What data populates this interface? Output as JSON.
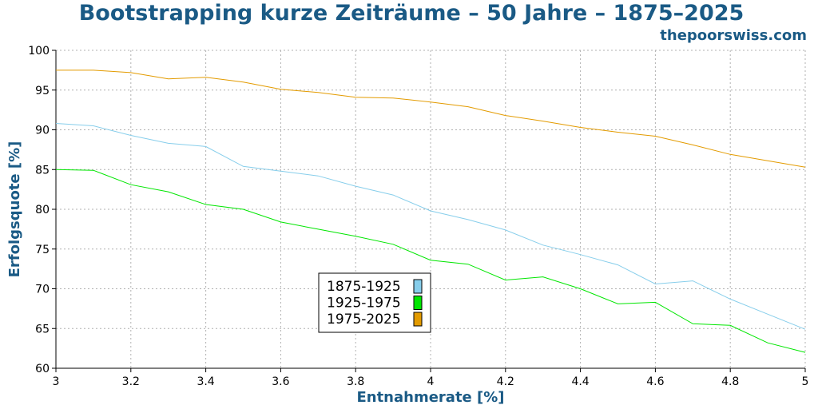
{
  "header": {
    "title": "Bootstrapping kurze Zeiträume – 50 Jahre – 1875–2025",
    "site": "thepoorswiss.com"
  },
  "chart_data": {
    "type": "line",
    "title": "Bootstrapping kurze Zeiträume – 50 Jahre – 1875–2025",
    "xlabel": "Entnahmerate [%]",
    "ylabel": "Erfolgsquote [%]",
    "xlim": [
      3,
      5
    ],
    "ylim": [
      60,
      100
    ],
    "xticks": [
      "3",
      "3.2",
      "3.4",
      "3.6",
      "3.8",
      "4",
      "4.2",
      "4.4",
      "4.6",
      "4.8",
      "5"
    ],
    "yticks": [
      "60",
      "65",
      "70",
      "75",
      "80",
      "85",
      "90",
      "95",
      "100"
    ],
    "grid": true,
    "legend_position": "center",
    "x": [
      3.0,
      3.1,
      3.2,
      3.3,
      3.4,
      3.5,
      3.6,
      3.7,
      3.8,
      3.9,
      4.0,
      4.1,
      4.2,
      4.3,
      4.4,
      4.5,
      4.6,
      4.7,
      4.8,
      4.9,
      5.0
    ],
    "series": [
      {
        "name": "1875-1925",
        "color": "#87ceeb",
        "values": [
          90.8,
          90.5,
          89.3,
          88.3,
          87.9,
          85.4,
          84.8,
          84.2,
          82.9,
          81.8,
          79.8,
          78.7,
          77.4,
          75.5,
          74.3,
          73.0,
          70.6,
          71.0,
          68.7,
          66.8,
          64.9
        ]
      },
      {
        "name": "1925-1975",
        "color": "#00e600",
        "values": [
          85.0,
          84.9,
          83.1,
          82.2,
          80.6,
          80.0,
          78.4,
          77.5,
          76.6,
          75.6,
          73.6,
          73.1,
          71.1,
          71.5,
          70.0,
          68.1,
          68.3,
          65.6,
          65.4,
          63.2,
          62.0
        ]
      },
      {
        "name": "1975-2025",
        "color": "#e39b00",
        "values": [
          97.5,
          97.5,
          97.2,
          96.4,
          96.6,
          96.0,
          95.1,
          94.7,
          94.1,
          94.0,
          93.5,
          92.9,
          91.8,
          91.1,
          90.3,
          89.7,
          89.2,
          88.1,
          86.9,
          86.1,
          85.3
        ]
      }
    ]
  }
}
